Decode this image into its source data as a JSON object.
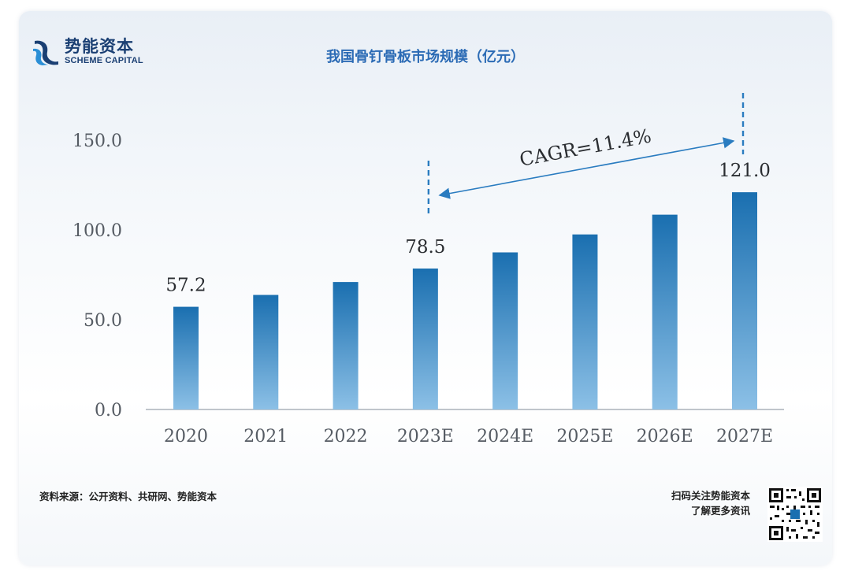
{
  "brand": {
    "name_cn": "势能资本",
    "name_en": "SCHEME CAPITAL"
  },
  "colors": {
    "bar_top": "#1a6fb0",
    "bar_bottom": "#8cc0e6",
    "title": "#2b6bb5",
    "brand": "#1a3f73"
  },
  "chart_data": {
    "type": "bar",
    "title": "我国骨钉骨板市场规模（亿元）",
    "categories": [
      "2020",
      "2021",
      "2022",
      "2023E",
      "2024E",
      "2025E",
      "2026E",
      "2027E"
    ],
    "values": [
      57.2,
      63.8,
      71.0,
      78.5,
      87.5,
      97.5,
      108.5,
      121.0
    ],
    "data_labels": [
      {
        "index": 0,
        "text": "57.2"
      },
      {
        "index": 3,
        "text": "78.5"
      },
      {
        "index": 7,
        "text": "121.0"
      }
    ],
    "yticks": [
      "0.0",
      "50.0",
      "100.0",
      "150.0"
    ],
    "ylim": [
      0,
      150
    ],
    "annotation": {
      "text": "CAGR=11.4%",
      "from_category": "2023E",
      "to_category": "2027E"
    },
    "grid": false,
    "legend": "none"
  },
  "footer": {
    "source": "资料来源：公开资料、共研网、势能资本",
    "qr_line1": "扫码关注势能资本",
    "qr_line2": "了解更多资讯"
  }
}
